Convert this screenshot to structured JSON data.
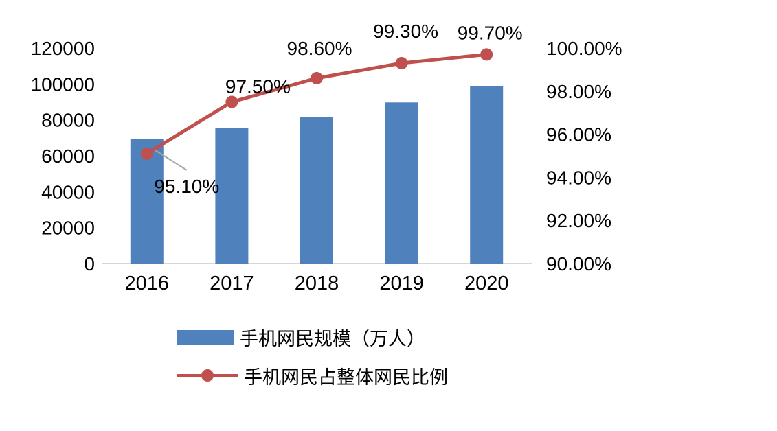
{
  "chart_data": {
    "type": "combo",
    "title": "",
    "categories": [
      "2016",
      "2017",
      "2018",
      "2019",
      "2020"
    ],
    "series": [
      {
        "name": "手机网民规模（万人）",
        "type": "bar",
        "axis": "left",
        "values": [
          69500,
          75300,
          81700,
          89700,
          98600
        ],
        "color": "#4F81BD"
      },
      {
        "name": "手机网民占整体网民比例",
        "type": "line",
        "axis": "right",
        "values": [
          95.1,
          97.5,
          98.6,
          99.3,
          99.7
        ],
        "labels": [
          "95.10%",
          "97.50%",
          "98.60%",
          "99.30%",
          "99.70%"
        ],
        "color": "#C0504D"
      }
    ],
    "left_axis": {
      "min": 0,
      "max": 120000,
      "step": 20000,
      "tick_labels": [
        "0",
        "20000",
        "40000",
        "60000",
        "80000",
        "100000",
        "120000"
      ]
    },
    "right_axis": {
      "min": 90,
      "max": 100,
      "step": 2,
      "tick_labels": [
        "90.00%",
        "92.00%",
        "94.00%",
        "96.00%",
        "98.00%",
        "100.00%"
      ]
    },
    "grid": false,
    "legend_position": "bottom",
    "colors": {
      "bar": "#4F81BD",
      "line": "#C0504D",
      "axis_line": "#D6D6D6",
      "leader_line": "#A6A6A6",
      "text": "#000000"
    }
  }
}
